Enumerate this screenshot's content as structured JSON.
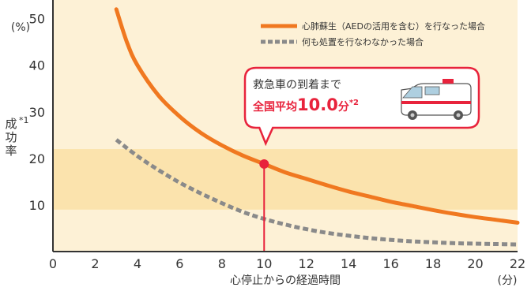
{
  "chart_data": {
    "type": "line",
    "x_unit": "(分)",
    "y_unit": "(%)",
    "xlabel": "心停止からの経過時間",
    "ylabel": "成功率",
    "ylabel_mark": "*1",
    "xlim": [
      0,
      22
    ],
    "ylim": [
      0,
      54
    ],
    "x_ticks": [
      0,
      2,
      4,
      6,
      8,
      10,
      12,
      14,
      16,
      18,
      20,
      22
    ],
    "y_ticks": [
      10,
      20,
      30,
      40,
      50
    ],
    "highlight_band": [
      9,
      22
    ],
    "series": [
      {
        "name": "心肺蘇生（AEDの活用を含む）を行なった場合",
        "color": "#f07820",
        "style": "solid",
        "x": [
          3,
          3.5,
          4,
          5,
          6,
          7,
          8,
          9,
          10,
          11,
          12,
          13,
          14,
          15,
          16,
          17,
          18,
          19,
          20,
          21,
          22
        ],
        "y": [
          52,
          45,
          40,
          33.5,
          29,
          25.5,
          22.8,
          20.6,
          18.8,
          17,
          15.6,
          14.2,
          12.9,
          11.8,
          10.7,
          9.8,
          8.9,
          8.1,
          7.4,
          6.8,
          6.2
        ]
      },
      {
        "name": "何も処置を行なわなかった場合",
        "color": "#8a8a8a",
        "style": "dashed",
        "x": [
          3,
          4,
          5,
          6,
          7,
          8,
          9,
          10,
          11,
          12,
          13,
          14,
          15,
          16,
          17,
          18,
          19,
          20,
          21,
          22
        ],
        "y": [
          24,
          20.5,
          17.5,
          14.8,
          12.5,
          10.4,
          8.5,
          7,
          5.8,
          4.8,
          4,
          3.4,
          2.9,
          2.5,
          2.2,
          2,
          1.8,
          1.7,
          1.6,
          1.5
        ]
      }
    ],
    "marker": {
      "x": 10,
      "y": 18.8,
      "color": "#e8233c"
    },
    "callout": {
      "line1": "救急車の到着まで",
      "prefix": "全国平均",
      "value": "10.0",
      "unit": "分",
      "mark": "*2",
      "border_color": "#e8233c",
      "accent_color": "#e8233c"
    },
    "icon": "ambulance-icon",
    "colors": {
      "background": "#fdf1d6",
      "band": "#fbe3ad",
      "axis": "#333333"
    }
  }
}
